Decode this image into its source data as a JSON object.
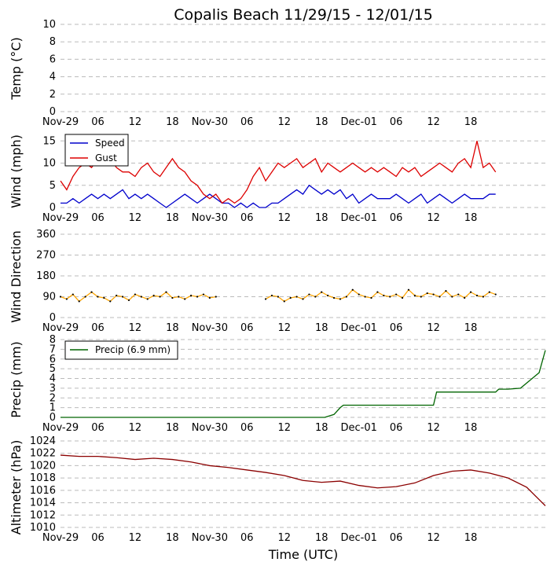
{
  "figure": {
    "title": "Copalis Beach 11/29/15 - 12/01/15",
    "xlabel": "Time (UTC)",
    "x_ticks": [
      "Nov-29",
      "06",
      "12",
      "18",
      "Nov-30",
      "06",
      "12",
      "18",
      "Dec-01",
      "06",
      "12",
      "18"
    ]
  },
  "chart_data": [
    {
      "type": "line",
      "name": "temp",
      "ylabel": "Temp ($^{\\circ}$C)",
      "ylabel_display": "Temp (°C)",
      "ylim": [
        0,
        10
      ],
      "yticks": [
        0,
        2,
        4,
        6,
        8,
        10
      ],
      "grid": true,
      "series": []
    },
    {
      "type": "line",
      "name": "wind",
      "ylabel": "Wind (mph)",
      "ylim": [
        0,
        17
      ],
      "yticks": [
        0,
        5,
        10,
        15
      ],
      "grid": true,
      "legend": "top-left",
      "series": [
        {
          "name": "Speed",
          "color": "#0000cc",
          "x": [
            0,
            1,
            2,
            3,
            4,
            5,
            6,
            7,
            8,
            9,
            10,
            11,
            12,
            13,
            14,
            15,
            16,
            17,
            18,
            19,
            20,
            21,
            22,
            23,
            24,
            25,
            26,
            27,
            28,
            29,
            30,
            31,
            32,
            33,
            34,
            35,
            36,
            37,
            38,
            39,
            40,
            41,
            42,
            43,
            44,
            45,
            46,
            47,
            48,
            49,
            50,
            51,
            52,
            53,
            54,
            55,
            56,
            57,
            58,
            59,
            60,
            61,
            62,
            63,
            64,
            65,
            66,
            67,
            68,
            69,
            70
          ],
          "y": [
            1,
            1,
            2,
            1,
            2,
            3,
            2,
            3,
            2,
            3,
            4,
            2,
            3,
            2,
            3,
            2,
            1,
            0,
            1,
            2,
            3,
            2,
            1,
            2,
            3,
            2,
            1,
            1,
            0,
            1,
            0,
            1,
            0,
            0,
            1,
            1,
            2,
            3,
            4,
            3,
            5,
            4,
            3,
            4,
            3,
            4,
            2,
            3,
            1,
            2,
            3,
            2,
            2,
            2,
            3,
            2,
            1,
            2,
            3,
            1,
            2,
            3,
            2,
            1,
            2,
            3,
            2,
            2,
            2,
            3,
            3
          ]
        },
        {
          "name": "Gust",
          "color": "#dd0000",
          "x": [
            0,
            1,
            2,
            3,
            4,
            5,
            6,
            7,
            8,
            9,
            10,
            11,
            12,
            13,
            14,
            15,
            16,
            17,
            18,
            19,
            20,
            21,
            22,
            23,
            24,
            25,
            26,
            27,
            28,
            29,
            30,
            31,
            32,
            33,
            34,
            35,
            36,
            37,
            38,
            39,
            40,
            41,
            42,
            43,
            44,
            45,
            46,
            47,
            48,
            49,
            50,
            51,
            52,
            53,
            54,
            55,
            56,
            57,
            58,
            59,
            60,
            61,
            62,
            63,
            64,
            65,
            66,
            67,
            68,
            69,
            70
          ],
          "y": [
            6,
            4,
            7,
            9,
            10,
            9,
            11,
            10,
            11,
            9,
            8,
            8,
            7,
            9,
            10,
            8,
            7,
            9,
            11,
            9,
            8,
            6,
            5,
            3,
            2,
            3,
            1,
            2,
            1,
            2,
            4,
            7,
            9,
            6,
            8,
            10,
            9,
            10,
            11,
            9,
            10,
            11,
            8,
            10,
            9,
            8,
            9,
            10,
            9,
            8,
            9,
            8,
            9,
            8,
            7,
            9,
            8,
            9,
            7,
            8,
            9,
            10,
            9,
            8,
            10,
            11,
            9,
            15,
            9,
            10,
            8
          ]
        }
      ]
    },
    {
      "type": "scatter",
      "name": "wind_direction",
      "ylabel": "Wind Direction",
      "ylim": [
        0,
        360
      ],
      "yticks": [
        0,
        90,
        180,
        270,
        360
      ],
      "grid": true,
      "series": [
        {
          "name": "Wind Direction",
          "color": "#ffa500",
          "x": [
            0,
            1,
            2,
            3,
            4,
            5,
            6,
            7,
            8,
            9,
            10,
            11,
            12,
            13,
            14,
            15,
            16,
            17,
            18,
            19,
            20,
            21,
            22,
            23,
            24,
            25,
            33,
            34,
            35,
            36,
            37,
            38,
            39,
            40,
            41,
            42,
            43,
            44,
            45,
            46,
            47,
            48,
            49,
            50,
            51,
            52,
            53,
            54,
            55,
            56,
            57,
            58,
            59,
            60,
            61,
            62,
            63,
            64,
            65,
            66,
            67,
            68,
            69,
            70
          ],
          "y": [
            90,
            80,
            100,
            70,
            90,
            110,
            90,
            85,
            70,
            95,
            90,
            75,
            100,
            90,
            80,
            95,
            90,
            110,
            85,
            90,
            80,
            95,
            90,
            100,
            85,
            90,
            80,
            95,
            90,
            70,
            85,
            90,
            80,
            100,
            90,
            110,
            95,
            85,
            80,
            90,
            120,
            100,
            90,
            85,
            110,
            95,
            90,
            100,
            85,
            120,
            95,
            90,
            105,
            100,
            90,
            115,
            90,
            100,
            85,
            110,
            95,
            90,
            110,
            100
          ]
        }
      ]
    },
    {
      "type": "line",
      "name": "precip",
      "ylabel": "Precip (mm)",
      "ylim": [
        0,
        8
      ],
      "yticks": [
        0,
        1,
        2,
        3,
        4,
        5,
        6,
        7,
        8
      ],
      "grid": true,
      "legend": "top-left",
      "series": [
        {
          "name": "Precip (6.9 mm)",
          "color": "#006400",
          "x": [
            0,
            42.5,
            44,
            45,
            45.5,
            60,
            60.5,
            70,
            70.5,
            72,
            74,
            77,
            78
          ],
          "y": [
            0,
            0,
            0.3,
            1.0,
            1.25,
            1.25,
            2.6,
            2.6,
            2.9,
            2.9,
            3.0,
            4.6,
            6.9
          ]
        }
      ]
    },
    {
      "type": "line",
      "name": "altimeter",
      "ylabel": "Altimeter (hPa)",
      "ylim": [
        1010,
        1024
      ],
      "yticks": [
        1010,
        1012,
        1014,
        1016,
        1018,
        1020,
        1022,
        1024
      ],
      "grid": true,
      "series": [
        {
          "name": "Altimeter",
          "color": "#8b0000",
          "x": [
            0,
            3,
            6,
            9,
            12,
            15,
            18,
            21,
            24,
            27,
            30,
            33,
            36,
            39,
            42,
            45,
            48,
            51,
            54,
            57,
            60,
            63,
            66,
            69,
            72,
            75,
            78
          ],
          "y": [
            1021.7,
            1021.5,
            1021.5,
            1021.3,
            1021.0,
            1021.2,
            1021.0,
            1020.6,
            1020.0,
            1019.7,
            1019.3,
            1018.9,
            1018.4,
            1017.6,
            1017.3,
            1017.5,
            1016.8,
            1016.4,
            1016.6,
            1017.2,
            1018.4,
            1019.1,
            1019.3,
            1018.8,
            1018.0,
            1016.5,
            1013.5
          ]
        }
      ]
    }
  ]
}
